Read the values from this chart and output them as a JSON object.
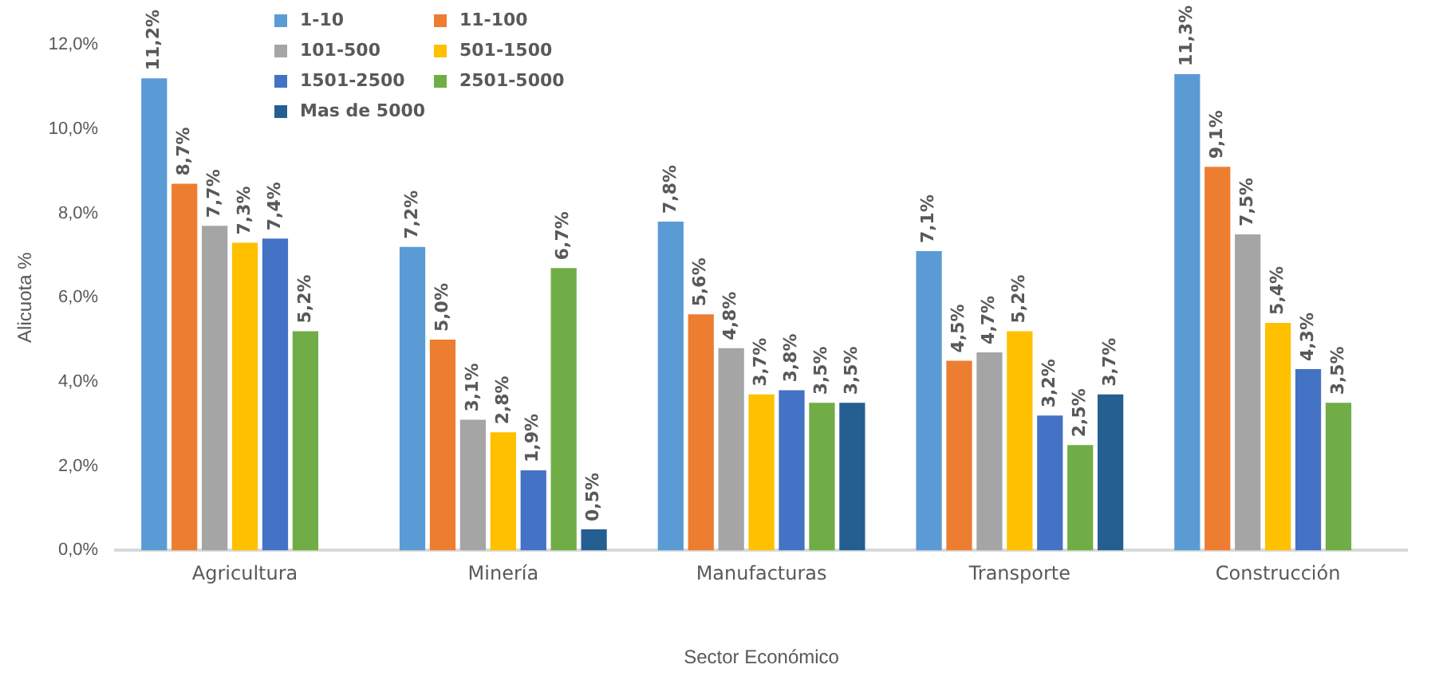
{
  "chart_data": {
    "type": "bar",
    "xlabel": "Sector Económico",
    "ylabel": "Alicuota %",
    "categories": [
      "Agricultura",
      "Minería",
      "Manufacturas",
      "Transporte",
      "Construcción"
    ],
    "series": [
      {
        "name": "1-10",
        "color": "#5b9bd5",
        "values": [
          11.2,
          7.2,
          7.8,
          7.1,
          11.3
        ],
        "value_labels": [
          "11,2%",
          "7,2%",
          "7,8%",
          "7,1%",
          "11,3%"
        ]
      },
      {
        "name": "11-100",
        "color": "#ed7d31",
        "values": [
          8.7,
          5.0,
          5.6,
          4.5,
          9.1
        ],
        "value_labels": [
          "8,7%",
          "5,0%",
          "5,6%",
          "4,5%",
          "9,1%"
        ]
      },
      {
        "name": "101-500",
        "color": "#a5a5a5",
        "values": [
          7.7,
          3.1,
          4.8,
          4.7,
          7.5
        ],
        "value_labels": [
          "7,7%",
          "3,1%",
          "4,8%",
          "4,7%",
          "7,5%"
        ]
      },
      {
        "name": "501-1500",
        "color": "#ffc000",
        "values": [
          7.3,
          2.8,
          3.7,
          5.2,
          5.4
        ],
        "value_labels": [
          "7,3%",
          "2,8%",
          "3,7%",
          "5,2%",
          "5,4%"
        ]
      },
      {
        "name": "1501-2500",
        "color": "#4472c4",
        "values": [
          7.4,
          1.9,
          3.8,
          3.2,
          4.3
        ],
        "value_labels": [
          "7,4%",
          "1,9%",
          "3,8%",
          "3,2%",
          "4,3%"
        ]
      },
      {
        "name": "2501-5000",
        "color": "#70ad47",
        "values": [
          5.2,
          6.7,
          3.5,
          2.5,
          3.5
        ],
        "value_labels": [
          "5,2%",
          "6,7%",
          "3,5%",
          "2,5%",
          "3,5%"
        ]
      },
      {
        "name": "Mas de 5000",
        "color": "#255e91",
        "values": [
          null,
          0.5,
          3.5,
          3.7,
          null
        ],
        "value_labels": [
          null,
          "0,5%",
          "3,5%",
          "3,7%",
          null
        ]
      }
    ],
    "ylim": [
      0,
      12
    ],
    "yticks": [
      {
        "value": 0,
        "label": "0,0%"
      },
      {
        "value": 2,
        "label": "2,0%"
      },
      {
        "value": 4,
        "label": "4,0%"
      },
      {
        "value": 6,
        "label": "6,0%"
      },
      {
        "value": 8,
        "label": "8,0%"
      },
      {
        "value": 10,
        "label": "10,0%"
      },
      {
        "value": 12,
        "label": "12,0%"
      }
    ],
    "grid": false,
    "legend": "top left"
  }
}
